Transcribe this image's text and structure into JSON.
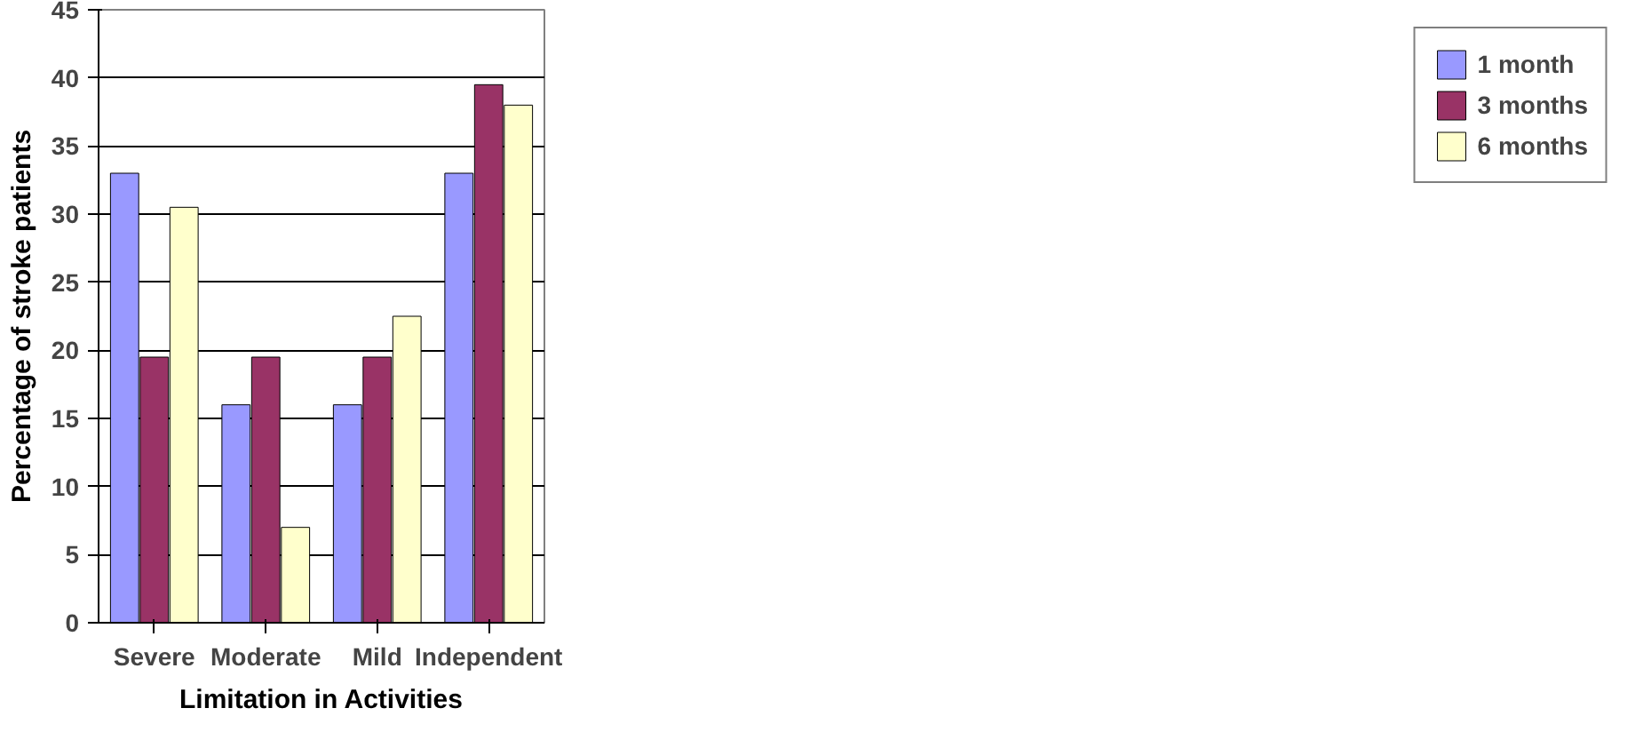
{
  "chart_data": {
    "type": "bar",
    "xlabel": "Limitation in Activities",
    "ylabel": "Percentage of stroke patients",
    "categories": [
      "Severe",
      "Moderate",
      "Mild",
      "Independent"
    ],
    "series": [
      {
        "name": "1 month",
        "color": "#9999ff",
        "values": [
          33,
          16,
          16,
          33
        ]
      },
      {
        "name": "3 months",
        "color": "#993366",
        "values": [
          19.5,
          19.5,
          19.5,
          39.5
        ]
      },
      {
        "name": "6 months",
        "color": "#ffffcc",
        "values": [
          30.5,
          7,
          22.5,
          38
        ]
      }
    ],
    "ylim": [
      0,
      45
    ],
    "yticks": [
      0,
      5,
      10,
      15,
      20,
      25,
      30,
      35,
      40,
      45
    ],
    "grid": "y",
    "legend": "right"
  }
}
